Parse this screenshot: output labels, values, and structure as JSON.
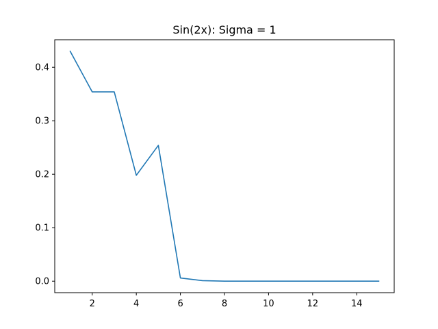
{
  "chart_data": {
    "type": "line",
    "title": "Sin(2x): Sigma = 1",
    "xlabel": "",
    "ylabel": "",
    "xlim": [
      0.3,
      15.7
    ],
    "ylim": [
      -0.0215,
      0.4515
    ],
    "xticks": [
      2,
      4,
      6,
      8,
      10,
      12,
      14
    ],
    "xtick_labels": [
      "2",
      "4",
      "6",
      "8",
      "10",
      "12",
      "14"
    ],
    "yticks": [
      0.0,
      0.1,
      0.2,
      0.3,
      0.4
    ],
    "ytick_labels": [
      "0.0",
      "0.1",
      "0.2",
      "0.3",
      "0.4"
    ],
    "grid": false,
    "legend": "none",
    "series": [
      {
        "color": "#1f77b4",
        "x": [
          1,
          2,
          3,
          4,
          5,
          6,
          7,
          8,
          9,
          10,
          11,
          12,
          13,
          14,
          15
        ],
        "y": [
          0.43,
          0.354,
          0.354,
          0.198,
          0.254,
          0.006,
          0.001,
          0.0,
          0.0,
          0.0,
          0.0,
          0.0,
          0.0,
          0.0,
          0.0
        ]
      }
    ]
  }
}
